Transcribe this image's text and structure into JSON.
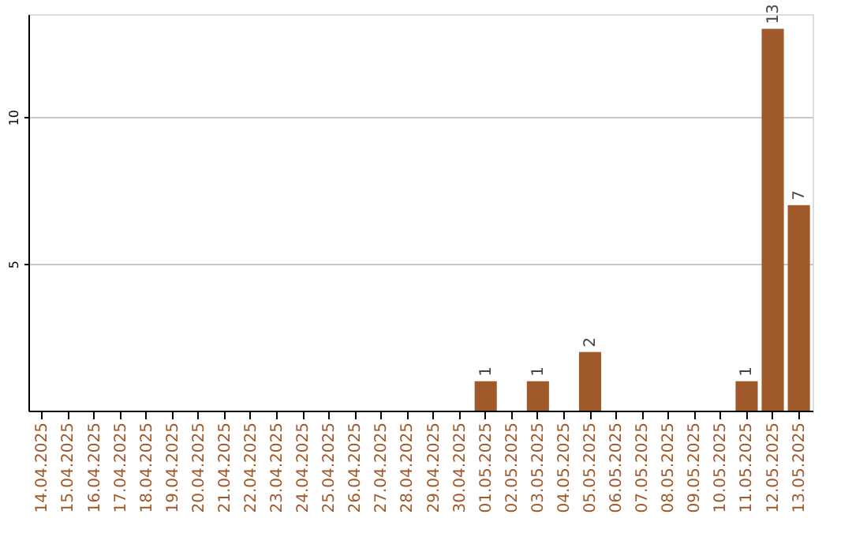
{
  "chart_data": {
    "type": "bar",
    "categories": [
      "14.04.2025",
      "15.04.2025",
      "16.04.2025",
      "17.04.2025",
      "18.04.2025",
      "19.04.2025",
      "20.04.2025",
      "21.04.2025",
      "22.04.2025",
      "23.04.2025",
      "24.04.2025",
      "25.04.2025",
      "26.04.2025",
      "27.04.2025",
      "28.04.2025",
      "29.04.2025",
      "30.04.2025",
      "01.05.2025",
      "02.05.2025",
      "03.05.2025",
      "04.05.2025",
      "05.05.2025",
      "06.05.2025",
      "07.05.2025",
      "08.05.2025",
      "09.05.2025",
      "10.05.2025",
      "11.05.2025",
      "12.05.2025",
      "13.05.2025"
    ],
    "values": [
      0,
      0,
      0,
      0,
      0,
      0,
      0,
      0,
      0,
      0,
      0,
      0,
      0,
      0,
      0,
      0,
      0,
      1,
      0,
      1,
      0,
      2,
      0,
      0,
      0,
      0,
      0,
      1,
      13,
      7
    ],
    "value_labels": [
      null,
      null,
      null,
      null,
      null,
      null,
      null,
      null,
      null,
      null,
      null,
      null,
      null,
      null,
      null,
      null,
      null,
      "1",
      null,
      "1",
      null,
      "2",
      null,
      null,
      null,
      null,
      null,
      "1",
      "13",
      "7"
    ],
    "color": "#a0592a",
    "ylim": [
      0,
      13.5
    ],
    "yticks": [
      5,
      10
    ],
    "grid": "y"
  }
}
